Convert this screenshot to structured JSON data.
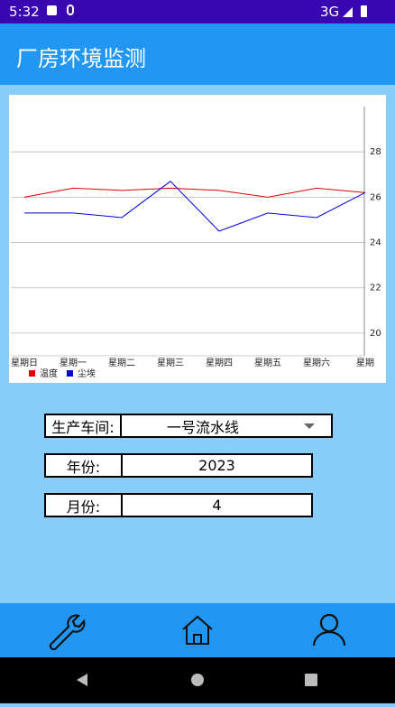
{
  "status_bar": {
    "time": "5:32",
    "network": "3G"
  },
  "app_bar": {
    "title": "厂房环境监测"
  },
  "chart_data": {
    "type": "line",
    "categories": [
      "星期日",
      "星期一",
      "星期二",
      "星期三",
      "星期四",
      "星期五",
      "星期六",
      "星期"
    ],
    "series": [
      {
        "name": "温度",
        "color": "#e00000",
        "values": [
          26.0,
          26.4,
          26.3,
          26.4,
          26.3,
          26.0,
          26.4,
          26.2
        ]
      },
      {
        "name": "尘埃",
        "color": "#0000e0",
        "values": [
          25.3,
          25.3,
          25.1,
          26.7,
          24.5,
          25.3,
          25.1,
          26.2
        ]
      }
    ],
    "ylim": [
      19,
      30
    ],
    "yticks": [
      20,
      22,
      24,
      26,
      28
    ],
    "grid": true,
    "legend": "bottom-left"
  },
  "form": {
    "workshop": {
      "label": "生产车间:",
      "value": "一号流水线"
    },
    "year": {
      "label": "年份:",
      "value": "2023"
    },
    "month": {
      "label": "月份:",
      "value": "4"
    }
  }
}
